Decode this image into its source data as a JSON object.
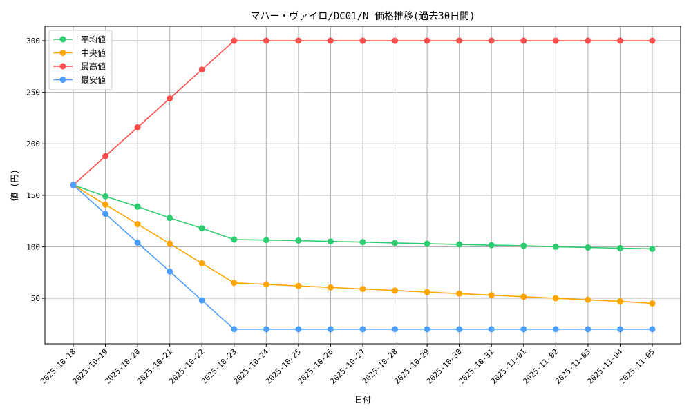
{
  "chart_data": {
    "type": "line",
    "title": "マハー・ヴァイロ/DC01/N 価格推移(過去30日間)",
    "xlabel": "日付",
    "ylabel": "値 (円)",
    "ylim": [
      5.8,
      314.1
    ],
    "yticks": [
      50,
      100,
      150,
      200,
      250,
      300
    ],
    "grid": true,
    "legend_position": "top-left",
    "categories": [
      "2025-10-18",
      "2025-10-19",
      "2025-10-20",
      "2025-10-21",
      "2025-10-22",
      "2025-10-23",
      "2025-10-24",
      "2025-10-25",
      "2025-10-26",
      "2025-10-27",
      "2025-10-28",
      "2025-10-29",
      "2025-10-30",
      "2025-10-31",
      "2025-11-01",
      "2025-11-02",
      "2025-11-03",
      "2025-11-04",
      "2025-11-05"
    ],
    "series": [
      {
        "name": "平均値",
        "color": "#2ecc71",
        "values": [
          160,
          149,
          139,
          128,
          118,
          107,
          106.5,
          106,
          105.2,
          104.5,
          103.7,
          103,
          102.3,
          101.6,
          101,
          100,
          99.3,
          98.6,
          98
        ]
      },
      {
        "name": "中央値",
        "color": "#ffa500",
        "values": [
          160,
          141,
          122,
          103,
          84,
          65,
          63.5,
          62,
          60.5,
          59,
          57.5,
          56,
          54.5,
          53,
          51.5,
          50,
          48.5,
          47,
          45
        ]
      },
      {
        "name": "最高値",
        "color": "#ff4d4d",
        "values": [
          160,
          188,
          216,
          244,
          272,
          300,
          300,
          300,
          300,
          300,
          300,
          300,
          300,
          300,
          300,
          300,
          300,
          300,
          300
        ]
      },
      {
        "name": "最安値",
        "color": "#4d9fff",
        "values": [
          160,
          132,
          104,
          76,
          48,
          20,
          20,
          20,
          20,
          20,
          20,
          20,
          20,
          20,
          20,
          20,
          20,
          20,
          20
        ]
      }
    ]
  }
}
